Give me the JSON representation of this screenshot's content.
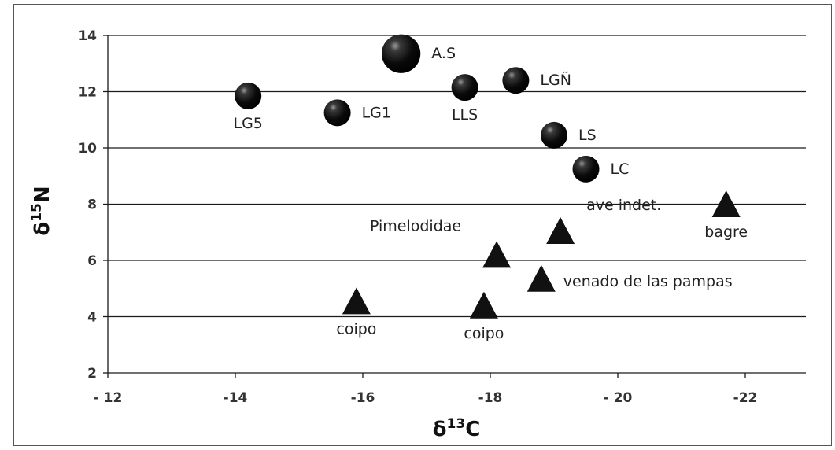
{
  "chart_data": {
    "type": "scatter",
    "xlabel_main": "δ",
    "xlabel_sup": "13",
    "xlabel_tail": "C",
    "ylabel_main": "δ",
    "ylabel_sup": "15",
    "ylabel_tail": "N",
    "xlim": [
      -12,
      -23
    ],
    "ylim": [
      2,
      14
    ],
    "x_ticks": [
      -12,
      -14,
      -16,
      -18,
      -20,
      -22
    ],
    "x_tick_labels": [
      "- 12",
      "-14",
      "-16",
      "-18",
      "- 20",
      "-22"
    ],
    "y_ticks": [
      2,
      4,
      6,
      8,
      10,
      12,
      14
    ],
    "y_tick_labels": [
      "2",
      "4",
      "6",
      "8",
      "10",
      "12",
      "14"
    ],
    "grid": true,
    "series": [
      {
        "marker": "circle",
        "points": [
          {
            "x": -14.2,
            "y": 11.85,
            "label": "LG5",
            "size": 1.0,
            "label_pos": "below"
          },
          {
            "x": -15.6,
            "y": 11.25,
            "label": "LG1",
            "size": 1.0,
            "label_pos": "right"
          },
          {
            "x": -16.6,
            "y": 13.35,
            "label": "A.S",
            "size": 1.45,
            "label_pos": "right"
          },
          {
            "x": -17.6,
            "y": 12.15,
            "label": "LLS",
            "size": 1.0,
            "label_pos": "below"
          },
          {
            "x": -18.4,
            "y": 12.4,
            "label": "LGÑ",
            "size": 1.0,
            "label_pos": "right"
          },
          {
            "x": -19.0,
            "y": 10.45,
            "label": "LS",
            "size": 1.0,
            "label_pos": "right"
          },
          {
            "x": -19.5,
            "y": 9.25,
            "label": "LC",
            "size": 1.0,
            "label_pos": "right"
          }
        ]
      },
      {
        "marker": "triangle",
        "points": [
          {
            "x": -15.9,
            "y": 4.45,
            "label": "coipo",
            "label_pos": "below"
          },
          {
            "x": -17.9,
            "y": 4.3,
            "label": "coipo",
            "label_pos": "below"
          },
          {
            "x": -18.1,
            "y": 6.1,
            "label": "Pimelodidae",
            "label_pos": "upper-left"
          },
          {
            "x": -18.8,
            "y": 5.25,
            "label": "venado de las pampas",
            "label_pos": "right"
          },
          {
            "x": -19.1,
            "y": 6.95,
            "label": "ave indet.",
            "label_pos": "upper-right"
          },
          {
            "x": -21.7,
            "y": 7.9,
            "label": "bagre",
            "label_pos": "below"
          }
        ]
      }
    ]
  }
}
